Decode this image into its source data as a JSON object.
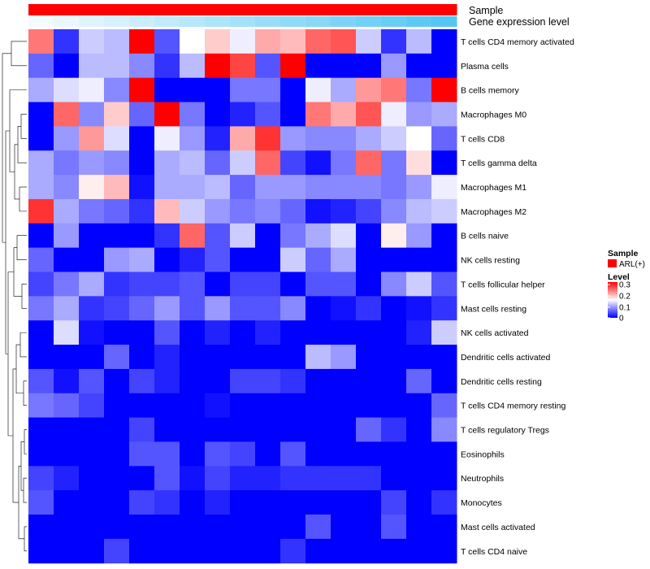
{
  "chart_data": {
    "type": "heatmap",
    "title": "",
    "annotation_tracks": [
      {
        "name": "Sample",
        "label": "Sample",
        "color": "#ff0000"
      },
      {
        "name": "Gene expression level",
        "label": "Gene expression level",
        "gradient": [
          "#f4fbff",
          "#55c6f4"
        ]
      }
    ],
    "rows": [
      "T cells CD4 memory activated",
      "Plasma cells",
      "B cells memory",
      "Macrophages M0",
      "T cells CD8",
      "T cells gamma delta",
      "Macrophages M1",
      "Macrophages M2",
      "B cells naive",
      "NK cells resting",
      "T cells follicular helper",
      "Mast cells resting",
      "NK cells activated",
      "Dendritic cells activated",
      "Dendritic cells resting",
      "T cells CD4 memory resting",
      "T cells regulatory  Tregs",
      "Eosinophils",
      "Neutrophils",
      "Monocytes",
      "Mast cells activated",
      "T cells CD4 naive"
    ],
    "columns": 17,
    "values": [
      [
        0.23,
        0.03,
        0.12,
        0.11,
        0.3,
        0.05,
        0.15,
        0.18,
        0.14,
        0.2,
        0.19,
        0.24,
        0.25,
        0.12,
        0.03,
        0.11,
        0.0
      ],
      [
        0.06,
        0.0,
        0.11,
        0.11,
        0.08,
        0.03,
        0.11,
        0.32,
        0.26,
        0.05,
        0.31,
        0.0,
        0.0,
        0.0,
        0.09,
        0.0,
        0.0
      ],
      [
        0.1,
        0.13,
        0.14,
        0.08,
        0.3,
        0.0,
        0.0,
        0.0,
        0.07,
        0.07,
        0.0,
        0.14,
        0.1,
        0.21,
        0.23,
        0.07,
        0.31
      ],
      [
        0.0,
        0.24,
        0.08,
        0.18,
        0.06,
        0.31,
        0.07,
        0.0,
        0.02,
        0.05,
        0.0,
        0.23,
        0.2,
        0.25,
        0.14,
        0.09,
        0.1
      ],
      [
        0.0,
        0.09,
        0.21,
        0.13,
        0.0,
        0.14,
        0.09,
        0.02,
        0.2,
        0.27,
        0.09,
        0.08,
        0.08,
        0.1,
        0.12,
        0.15,
        0.06
      ],
      [
        0.1,
        0.07,
        0.09,
        0.08,
        0.0,
        0.1,
        0.11,
        0.06,
        0.12,
        0.24,
        0.04,
        0.01,
        0.07,
        0.24,
        0.07,
        0.17,
        0.0
      ],
      [
        0.1,
        0.08,
        0.16,
        0.19,
        0.01,
        0.1,
        0.1,
        0.11,
        0.06,
        0.09,
        0.09,
        0.08,
        0.08,
        0.08,
        0.07,
        0.09,
        0.14
      ],
      [
        0.27,
        0.1,
        0.07,
        0.06,
        0.03,
        0.19,
        0.12,
        0.09,
        0.07,
        0.08,
        0.06,
        0.01,
        0.02,
        0.04,
        0.08,
        0.11,
        0.12
      ],
      [
        0.0,
        0.09,
        0.0,
        0.0,
        0.0,
        0.03,
        0.24,
        0.05,
        0.12,
        0.0,
        0.07,
        0.1,
        0.13,
        0.0,
        0.16,
        0.09,
        0.0
      ],
      [
        0.06,
        0.0,
        0.0,
        0.09,
        0.1,
        0.0,
        0.02,
        0.05,
        0.0,
        0.0,
        0.12,
        0.06,
        0.1,
        0.0,
        0.0,
        0.0,
        0.0
      ],
      [
        0.04,
        0.07,
        0.1,
        0.03,
        0.04,
        0.04,
        0.05,
        0.0,
        0.04,
        0.04,
        0.0,
        0.05,
        0.05,
        0.0,
        0.08,
        0.12,
        0.05
      ],
      [
        0.07,
        0.1,
        0.03,
        0.04,
        0.06,
        0.09,
        0.05,
        0.09,
        0.05,
        0.05,
        0.08,
        0.0,
        0.01,
        0.03,
        0.0,
        0.01,
        0.03
      ],
      [
        0.0,
        0.13,
        0.01,
        0.0,
        0.0,
        0.05,
        0.0,
        0.02,
        0.0,
        0.02,
        0.0,
        0.0,
        0.0,
        0.0,
        0.0,
        0.02,
        0.12
      ],
      [
        0.0,
        0.0,
        0.0,
        0.06,
        0.0,
        0.02,
        0.0,
        0.0,
        0.0,
        0.0,
        0.0,
        0.11,
        0.09,
        0.0,
        0.0,
        0.0,
        0.0
      ],
      [
        0.05,
        0.01,
        0.05,
        0.0,
        0.04,
        0.02,
        0.0,
        0.0,
        0.04,
        0.04,
        0.03,
        0.0,
        0.0,
        0.0,
        0.0,
        0.06,
        0.0
      ],
      [
        0.07,
        0.06,
        0.04,
        0.0,
        0.0,
        0.0,
        0.0,
        0.01,
        0.0,
        0.0,
        0.0,
        0.0,
        0.0,
        0.0,
        0.0,
        0.0,
        0.06
      ],
      [
        0.0,
        0.0,
        0.0,
        0.0,
        0.04,
        0.0,
        0.0,
        0.0,
        0.0,
        0.0,
        0.0,
        0.0,
        0.0,
        0.06,
        0.03,
        0.0,
        0.08
      ],
      [
        0.0,
        0.0,
        0.0,
        0.0,
        0.05,
        0.05,
        0.0,
        0.05,
        0.04,
        0.0,
        0.05,
        0.0,
        0.0,
        0.0,
        0.0,
        0.0,
        0.0
      ],
      [
        0.04,
        0.02,
        0.0,
        0.0,
        0.0,
        0.05,
        0.01,
        0.04,
        0.02,
        0.02,
        0.03,
        0.03,
        0.03,
        0.03,
        0.0,
        0.0,
        0.0
      ],
      [
        0.05,
        0.0,
        0.0,
        0.0,
        0.04,
        0.03,
        0.0,
        0.02,
        0.0,
        0.0,
        0.0,
        0.0,
        0.0,
        0.0,
        0.04,
        0.0,
        0.03
      ],
      [
        0.0,
        0.0,
        0.0,
        0.0,
        0.0,
        0.0,
        0.0,
        0.0,
        0.0,
        0.0,
        0.0,
        0.05,
        0.0,
        0.0,
        0.05,
        0.0,
        0.0
      ],
      [
        0.0,
        0.0,
        0.0,
        0.04,
        0.0,
        0.0,
        0.0,
        0.0,
        0.0,
        0.0,
        0.03,
        0.0,
        0.0,
        0.0,
        0.0,
        0.0,
        0.0
      ]
    ],
    "color_scale": {
      "min": 0,
      "max": 0.3,
      "colors": [
        "#0000ff",
        "#ffffff",
        "#ff0000"
      ]
    },
    "legend": {
      "sample_title": "Sample",
      "sample_entry": "ARL(+)",
      "level_title": "Level",
      "ticks": [
        "0.3",
        "0.2",
        "0.1",
        "0"
      ],
      "placement": "right"
    },
    "row_dendrogram": true
  }
}
